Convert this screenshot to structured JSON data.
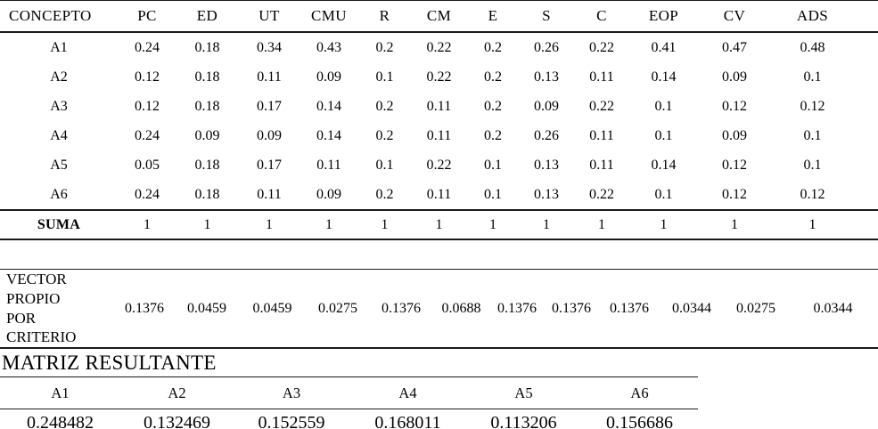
{
  "main_table": {
    "header": [
      "CONCEPTO",
      "PC",
      "ED",
      "UT",
      "CMU",
      "R",
      "CM",
      "E",
      "S",
      "C",
      "EOP",
      "CV",
      "ADS"
    ],
    "rows": [
      {
        "label": "A1",
        "values": [
          "0.24",
          "0.18",
          "0.34",
          "0.43",
          "0.2",
          "0.22",
          "0.2",
          "0.26",
          "0.22",
          "0.41",
          "0.47",
          "0.48"
        ]
      },
      {
        "label": "A2",
        "values": [
          "0.12",
          "0.18",
          "0.11",
          "0.09",
          "0.1",
          "0.22",
          "0.2",
          "0.13",
          "0.11",
          "0.14",
          "0.09",
          "0.1"
        ]
      },
      {
        "label": "A3",
        "values": [
          "0.12",
          "0.18",
          "0.17",
          "0.14",
          "0.2",
          "0.11",
          "0.2",
          "0.09",
          "0.22",
          "0.1",
          "0.12",
          "0.12"
        ]
      },
      {
        "label": "A4",
        "values": [
          "0.24",
          "0.09",
          "0.09",
          "0.14",
          "0.2",
          "0.11",
          "0.2",
          "0.26",
          "0.11",
          "0.1",
          "0.09",
          "0.1"
        ]
      },
      {
        "label": "A5",
        "values": [
          "0.05",
          "0.18",
          "0.17",
          "0.11",
          "0.1",
          "0.22",
          "0.1",
          "0.13",
          "0.11",
          "0.14",
          "0.12",
          "0.1"
        ]
      },
      {
        "label": "A6",
        "values": [
          "0.24",
          "0.18",
          "0.11",
          "0.09",
          "0.2",
          "0.11",
          "0.1",
          "0.13",
          "0.22",
          "0.1",
          "0.12",
          "0.12"
        ]
      }
    ],
    "suma": {
      "label": "SUMA",
      "values": [
        "1",
        "1",
        "1",
        "1",
        "1",
        "1",
        "1",
        "1",
        "1",
        "1",
        "1",
        "1"
      ]
    }
  },
  "vector_table": {
    "label": "VECTOR PROPIO POR CRITERIO",
    "values": [
      "0.1376",
      "0.0459",
      "0.0459",
      "0.0275",
      "0.1376",
      "0.0688",
      "0.1376",
      "0.1376",
      "0.1376",
      "0.0344",
      "0.0275",
      "0.0344"
    ]
  },
  "result_section": {
    "title": "MATRIZ RESULTANTE",
    "header": [
      "A1",
      "A2",
      "A3",
      "A4",
      "A5",
      "A6"
    ],
    "values": [
      "0.248482",
      "0.132469",
      "0.152559",
      "0.168011",
      "0.113206",
      "0.156686"
    ]
  }
}
